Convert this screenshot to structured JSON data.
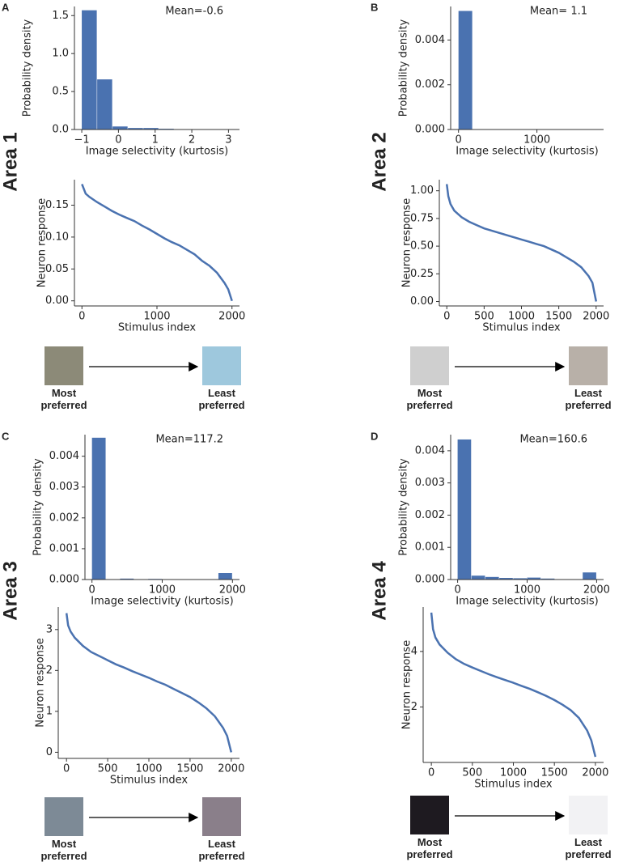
{
  "chart_data": [
    {
      "type": "histogram",
      "xlabel": "Image selectivity (kurtosis)",
      "ylabel": "Probability density",
      "annotation": "Mean=-0.6",
      "color": "#4a72b0",
      "bins": [
        -1.0,
        -0.58,
        -0.16,
        0.26,
        0.68,
        1.1,
        1.52,
        1.94,
        2.36,
        2.78,
        3.2
      ],
      "values": [
        1.57,
        0.66,
        0.04,
        0.02,
        0.02,
        0.01,
        0.003,
        0.001,
        0,
        0.001
      ],
      "xlim": [
        -1.2,
        3.3
      ],
      "xticks": [
        {
          "value": -1,
          "label": "−1"
        },
        0,
        1,
        2,
        3
      ],
      "ylim": [
        0,
        1.62
      ],
      "yticks": [
        {
          "value": 0,
          "label": "0.0"
        },
        {
          "value": 0.5,
          "label": "0.5"
        },
        {
          "value": 1,
          "label": "1.0"
        },
        {
          "value": 1.5,
          "label": "1.5"
        }
      ]
    },
    {
      "type": "line",
      "xlabel": "Stimulus index",
      "ylabel": "Neuron response",
      "color": "#4a72b0",
      "x": [
        0,
        50,
        100,
        200,
        300,
        400,
        500,
        600,
        700,
        800,
        900,
        1000,
        1100,
        1200,
        1300,
        1400,
        1500,
        1600,
        1700,
        1800,
        1900,
        1950,
        2000
      ],
      "values": [
        0.183,
        0.168,
        0.163,
        0.155,
        0.148,
        0.141,
        0.135,
        0.13,
        0.125,
        0.118,
        0.112,
        0.105,
        0.098,
        0.092,
        0.087,
        0.08,
        0.073,
        0.063,
        0.055,
        0.044,
        0.028,
        0.018,
        0.0
      ],
      "xlim": [
        -100,
        2100
      ],
      "xticks": [
        0,
        1000,
        2000
      ],
      "ylim": [
        -0.008,
        0.19
      ],
      "yticks": [
        {
          "value": 0,
          "label": "0.00"
        },
        {
          "value": 0.05,
          "label": "0.05"
        },
        {
          "value": 0.1,
          "label": "0.10"
        },
        {
          "value": 0.15,
          "label": "0.15"
        }
      ]
    },
    {
      "type": "histogram",
      "xlabel": "Image selectivity (kurtosis)",
      "ylabel": "Probability density",
      "annotation": "Mean= 1.1",
      "color": "#4a72b0",
      "bins": [
        0,
        180,
        360,
        540,
        720,
        900,
        1080,
        1260,
        1440,
        1620,
        1800
      ],
      "values": [
        0.0053,
        0,
        0,
        0,
        0,
        0,
        0,
        0,
        0,
        0
      ],
      "xlim": [
        -100,
        1850
      ],
      "xticks": [
        0,
        1000
      ],
      "ylim": [
        0,
        0.0055
      ],
      "yticks": [
        {
          "value": 0,
          "label": "0.000"
        },
        {
          "value": 0.002,
          "label": "0.002"
        },
        {
          "value": 0.004,
          "label": "0.004"
        }
      ]
    },
    {
      "type": "line",
      "xlabel": "Stimulus index",
      "ylabel": "Neuron response",
      "color": "#4a72b0",
      "x": [
        0,
        20,
        50,
        100,
        200,
        300,
        400,
        500,
        600,
        700,
        800,
        900,
        1000,
        1100,
        1200,
        1300,
        1400,
        1500,
        1600,
        1700,
        1800,
        1900,
        1950,
        2000
      ],
      "values": [
        1.06,
        0.95,
        0.88,
        0.82,
        0.76,
        0.72,
        0.69,
        0.66,
        0.64,
        0.62,
        0.6,
        0.58,
        0.56,
        0.54,
        0.52,
        0.5,
        0.47,
        0.44,
        0.4,
        0.36,
        0.31,
        0.23,
        0.17,
        0.0
      ],
      "xlim": [
        -100,
        2100
      ],
      "xticks": [
        0,
        500,
        1000,
        1500,
        2000
      ],
      "ylim": [
        -0.04,
        1.1
      ],
      "yticks": [
        {
          "value": 0,
          "label": "0.00"
        },
        {
          "value": 0.25,
          "label": "0.25"
        },
        {
          "value": 0.5,
          "label": "0.50"
        },
        {
          "value": 0.75,
          "label": "0.75"
        },
        {
          "value": 1,
          "label": "1.00"
        }
      ]
    },
    {
      "type": "histogram",
      "xlabel": "Image selectivity (kurtosis)",
      "ylabel": "Probability density",
      "annotation": "Mean=117.2",
      "color": "#4a72b0",
      "bins": [
        0,
        200,
        400,
        600,
        800,
        1000,
        1200,
        1400,
        1600,
        1800,
        2000
      ],
      "values": [
        0.0046,
        0,
        3e-05,
        0,
        2e-05,
        1e-05,
        0,
        0,
        0,
        0.00021
      ],
      "xlim": [
        -100,
        2100
      ],
      "xticks": [
        0,
        1000,
        2000
      ],
      "ylim": [
        0,
        0.0047
      ],
      "yticks": [
        {
          "value": 0,
          "label": "0.000"
        },
        {
          "value": 0.001,
          "label": "0.001"
        },
        {
          "value": 0.002,
          "label": "0.002"
        },
        {
          "value": 0.003,
          "label": "0.003"
        },
        {
          "value": 0.004,
          "label": "0.004"
        }
      ]
    },
    {
      "type": "line",
      "xlabel": "Stimulus index",
      "ylabel": "Neuron response",
      "color": "#4a72b0",
      "x": [
        0,
        20,
        50,
        100,
        200,
        300,
        400,
        500,
        600,
        700,
        800,
        900,
        1000,
        1100,
        1200,
        1300,
        1400,
        1500,
        1600,
        1700,
        1800,
        1900,
        1950,
        2000
      ],
      "values": [
        3.4,
        3.1,
        2.95,
        2.8,
        2.6,
        2.45,
        2.35,
        2.25,
        2.15,
        2.07,
        1.98,
        1.9,
        1.82,
        1.73,
        1.65,
        1.55,
        1.45,
        1.35,
        1.22,
        1.07,
        0.88,
        0.6,
        0.4,
        0.0
      ],
      "xlim": [
        -100,
        2100
      ],
      "xticks": [
        0,
        500,
        1000,
        1500,
        2000
      ],
      "ylim": [
        -0.15,
        3.55
      ],
      "yticks": [
        0,
        1,
        2,
        3
      ]
    },
    {
      "type": "histogram",
      "xlabel": "Image selectivity (kurtosis)",
      "ylabel": "Probability density",
      "annotation": "Mean=160.6",
      "color": "#4a72b0",
      "bins": [
        0,
        200,
        400,
        600,
        800,
        1000,
        1200,
        1400,
        1600,
        1800,
        2000
      ],
      "values": [
        0.00435,
        0.00012,
        8e-05,
        5e-05,
        4e-05,
        6e-05,
        3e-05,
        0,
        0,
        0.00022
      ],
      "xlim": [
        -100,
        2100
      ],
      "xticks": [
        0,
        1000,
        2000
      ],
      "ylim": [
        0,
        0.0045
      ],
      "yticks": [
        {
          "value": 0,
          "label": "0.000"
        },
        {
          "value": 0.001,
          "label": "0.001"
        },
        {
          "value": 0.002,
          "label": "0.002"
        },
        {
          "value": 0.003,
          "label": "0.003"
        },
        {
          "value": 0.004,
          "label": "0.004"
        }
      ]
    },
    {
      "type": "line",
      "xlabel": "Stimulus index",
      "ylabel": "Neuron response",
      "color": "#4a72b0",
      "x": [
        0,
        20,
        50,
        100,
        200,
        300,
        400,
        500,
        600,
        700,
        800,
        900,
        1000,
        1100,
        1200,
        1300,
        1400,
        1500,
        1600,
        1700,
        1800,
        1900,
        1950,
        2000
      ],
      "values": [
        5.4,
        4.8,
        4.5,
        4.25,
        3.95,
        3.72,
        3.55,
        3.42,
        3.3,
        3.18,
        3.07,
        2.97,
        2.87,
        2.76,
        2.65,
        2.53,
        2.4,
        2.25,
        2.08,
        1.88,
        1.6,
        1.15,
        0.8,
        0.2
      ],
      "xlim": [
        -100,
        2100
      ],
      "xticks": [
        0,
        500,
        1000,
        1500,
        2000
      ],
      "ylim": [
        0,
        5.6
      ],
      "yticks": [
        2,
        4
      ]
    }
  ],
  "panels": [
    {
      "label": "A",
      "area": "Area 1",
      "most": "Most preferred",
      "least": "Least preferred"
    },
    {
      "label": "B",
      "area": "Area 2",
      "most": "Most preferred",
      "least": "Least preferred"
    },
    {
      "label": "C",
      "area": "Area 3",
      "most": "Most preferred",
      "least": "Least preferred"
    },
    {
      "label": "D",
      "area": "Area 4",
      "most": "Most preferred",
      "least": "Least preferred"
    }
  ]
}
